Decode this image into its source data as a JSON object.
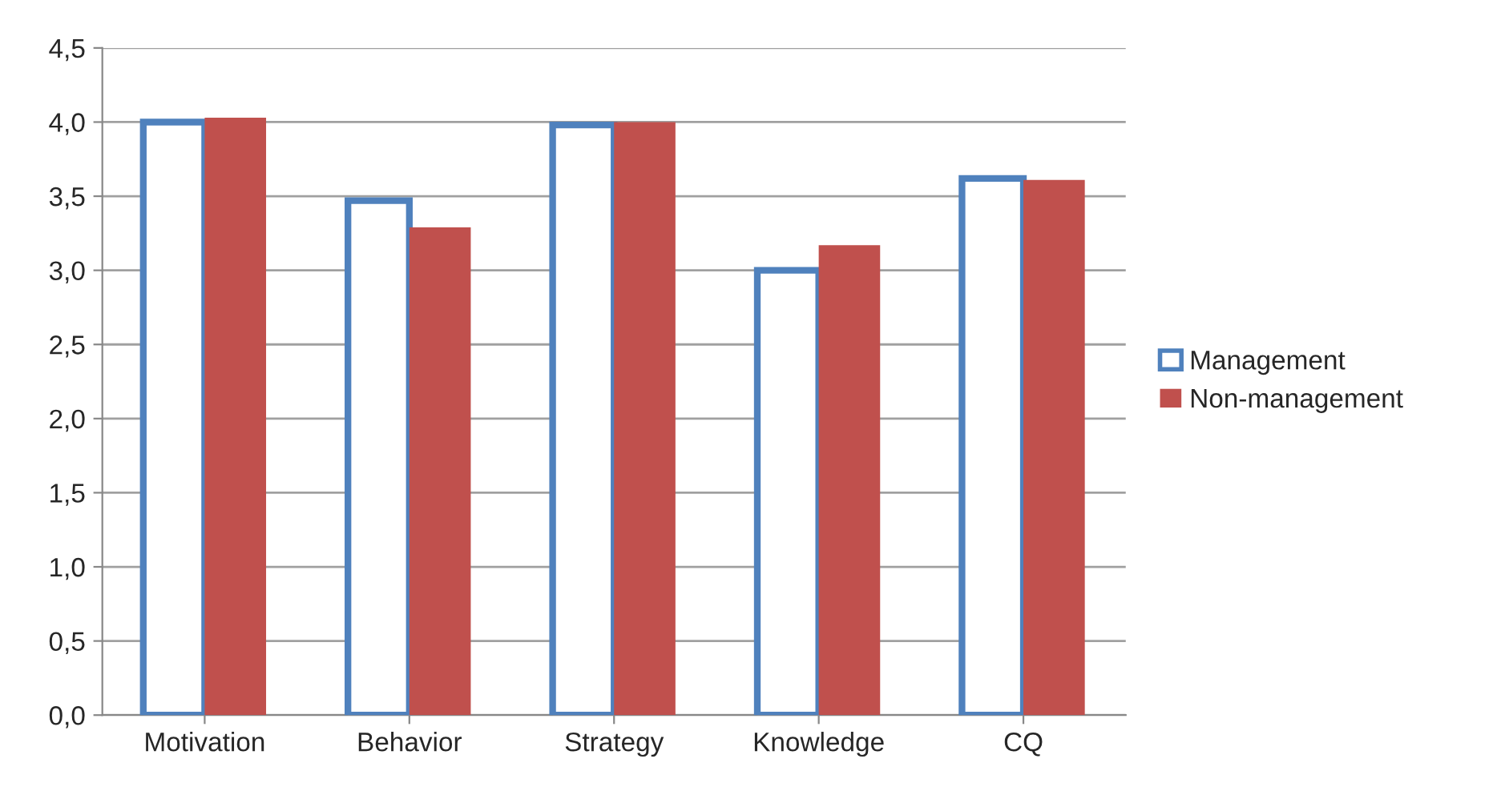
{
  "chart_data": {
    "type": "bar",
    "categories": [
      "Motivation",
      "Behavior",
      "Strategy",
      "Knowledge",
      "CQ"
    ],
    "series": [
      {
        "name": "Management",
        "color": "#4f81bd",
        "values": [
          4.0,
          3.47,
          3.98,
          3.0,
          3.62
        ]
      },
      {
        "name": "Non-management",
        "color": "#c0504d",
        "values": [
          4.03,
          3.29,
          4.0,
          3.17,
          3.61
        ]
      }
    ],
    "ylim": [
      0,
      4.5
    ],
    "yticks": [
      {
        "value": 0,
        "label": "0,0"
      },
      {
        "value": 0.5,
        "label": "0,5"
      },
      {
        "value": 1,
        "label": "1,0"
      },
      {
        "value": 1.5,
        "label": "1,5"
      },
      {
        "value": 2,
        "label": "2,0"
      },
      {
        "value": 2.5,
        "label": "2,5"
      },
      {
        "value": 3,
        "label": "3,0"
      },
      {
        "value": 3.5,
        "label": "3,5"
      },
      {
        "value": 4,
        "label": "4,0"
      },
      {
        "value": 4.5,
        "label": "4,5"
      }
    ],
    "grid": "y",
    "legend": "right"
  }
}
